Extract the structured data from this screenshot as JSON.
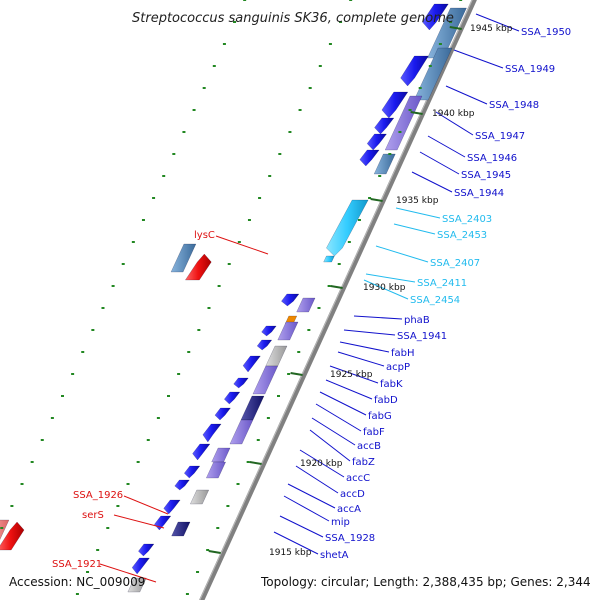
{
  "map": {
    "title": "Streptococcus sanguinis SK36, complete genome",
    "accession": "Accession: NC_009009",
    "topology": "Topology: circular; Length: 2,388,435 bp; Genes: 2,344"
  },
  "scale_ticks": [
    "1945 kbp",
    "1940 kbp",
    "1935 kbp",
    "1930 kbp",
    "1925 kbp",
    "1920 kbp",
    "1915 kbp"
  ],
  "colors": {
    "backbone": "#808080",
    "forward_cds": "#1a1aee",
    "rna_cyan": "#33ccff",
    "reverse_red": "#ee1111",
    "label_blue": "#1111cc",
    "label_cyan": "#22bbee",
    "label_red": "#dd1111",
    "tick_green": "#228822"
  },
  "gene_labels": {
    "right": [
      {
        "name": "SSA_1950",
        "color": "blue"
      },
      {
        "name": "SSA_1949",
        "color": "blue"
      },
      {
        "name": "SSA_1948",
        "color": "blue"
      },
      {
        "name": "SSA_1947",
        "color": "blue"
      },
      {
        "name": "SSA_1946",
        "color": "blue"
      },
      {
        "name": "SSA_1945",
        "color": "blue"
      },
      {
        "name": "SSA_1944",
        "color": "blue"
      },
      {
        "name": "SSA_2403",
        "color": "cyan"
      },
      {
        "name": "SSA_2453",
        "color": "cyan"
      },
      {
        "name": "SSA_2407",
        "color": "cyan"
      },
      {
        "name": "SSA_2411",
        "color": "cyan"
      },
      {
        "name": "SSA_2454",
        "color": "cyan"
      },
      {
        "name": "phaB",
        "color": "blue"
      },
      {
        "name": "SSA_1941",
        "color": "blue"
      },
      {
        "name": "fabH",
        "color": "blue"
      },
      {
        "name": "acpP",
        "color": "blue"
      },
      {
        "name": "fabK",
        "color": "blue"
      },
      {
        "name": "fabD",
        "color": "blue"
      },
      {
        "name": "fabG",
        "color": "blue"
      },
      {
        "name": "fabF",
        "color": "blue"
      },
      {
        "name": "accB",
        "color": "blue"
      },
      {
        "name": "fabZ",
        "color": "blue"
      },
      {
        "name": "accC",
        "color": "blue"
      },
      {
        "name": "accD",
        "color": "blue"
      },
      {
        "name": "accA",
        "color": "blue"
      },
      {
        "name": "mip",
        "color": "blue"
      },
      {
        "name": "SSA_1928",
        "color": "blue"
      },
      {
        "name": "shetA",
        "color": "blue"
      }
    ],
    "left": [
      {
        "name": "lysC",
        "color": "red"
      },
      {
        "name": "SSA_1926",
        "color": "red"
      },
      {
        "name": "serS",
        "color": "red"
      },
      {
        "name": "SSA_1921",
        "color": "red"
      }
    ]
  }
}
